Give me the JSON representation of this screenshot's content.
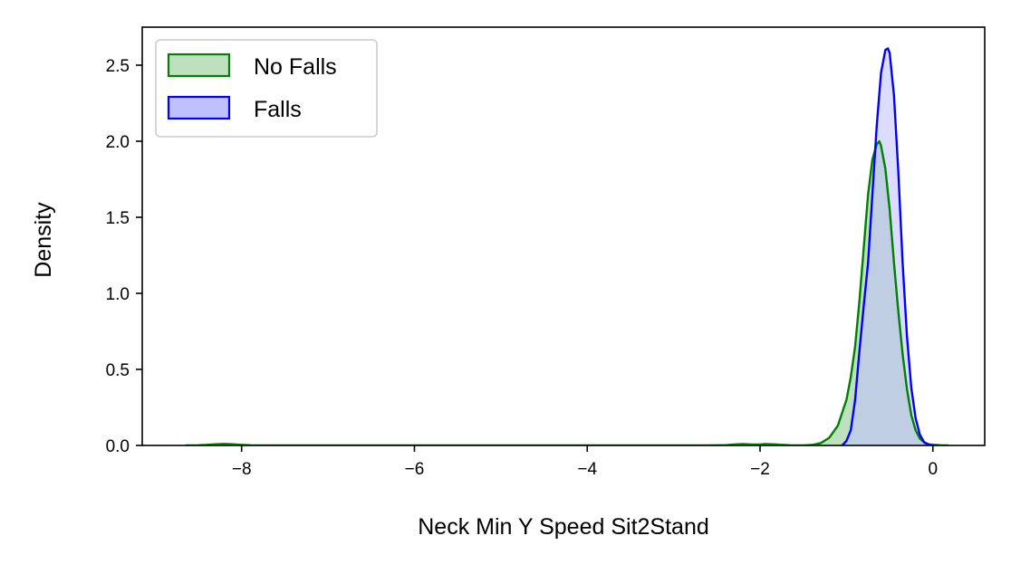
{
  "chart_data": {
    "type": "area",
    "title": "",
    "xlabel": "Neck Min Y Speed Sit2Stand",
    "ylabel": "Density",
    "xlim": [
      -9.15,
      0.6
    ],
    "ylim": [
      0,
      2.75
    ],
    "xticks": [
      -8,
      -6,
      -4,
      -2,
      0
    ],
    "xtick_labels": [
      "−8",
      "−6",
      "−4",
      "−2",
      "0"
    ],
    "yticks": [
      0.0,
      0.5,
      1.0,
      1.5,
      2.0,
      2.5
    ],
    "ytick_labels": [
      "0.0",
      "0.5",
      "1.0",
      "1.5",
      "2.0",
      "2.5"
    ],
    "grid": false,
    "legend_position": "top-left",
    "series": [
      {
        "name": "No Falls",
        "color": "#008000",
        "fill": "#bfe0bf",
        "x": [
          -8.65,
          -8.5,
          -8.4,
          -8.3,
          -8.2,
          -8.1,
          -8.0,
          -7.9,
          -7.5,
          -6.5,
          -5.0,
          -3.5,
          -2.6,
          -2.4,
          -2.3,
          -2.2,
          -2.1,
          -2.0,
          -1.95,
          -1.85,
          -1.75,
          -1.65,
          -1.5,
          -1.4,
          -1.3,
          -1.2,
          -1.1,
          -1.0,
          -0.95,
          -0.9,
          -0.85,
          -0.8,
          -0.75,
          -0.7,
          -0.65,
          -0.62,
          -0.6,
          -0.55,
          -0.5,
          -0.45,
          -0.4,
          -0.35,
          -0.3,
          -0.25,
          -0.2,
          -0.15,
          -0.1,
          -0.05,
          0.0,
          0.1,
          0.18
        ],
        "y": [
          0.0,
          0.001,
          0.004,
          0.008,
          0.01,
          0.008,
          0.004,
          0.001,
          0.0,
          0.0,
          0.0,
          0.0,
          0.0,
          0.002,
          0.006,
          0.009,
          0.006,
          0.006,
          0.009,
          0.008,
          0.004,
          0.001,
          0.0,
          0.003,
          0.015,
          0.05,
          0.13,
          0.3,
          0.45,
          0.65,
          0.95,
          1.3,
          1.65,
          1.88,
          1.98,
          2.0,
          1.97,
          1.82,
          1.55,
          1.2,
          0.88,
          0.6,
          0.37,
          0.2,
          0.1,
          0.045,
          0.02,
          0.008,
          0.004,
          0.001,
          0.0
        ]
      },
      {
        "name": "Falls",
        "color": "#0000ff",
        "fill": "#c0c0ff",
        "x": [
          -1.05,
          -1.0,
          -0.95,
          -0.9,
          -0.85,
          -0.8,
          -0.75,
          -0.7,
          -0.65,
          -0.6,
          -0.55,
          -0.52,
          -0.5,
          -0.45,
          -0.4,
          -0.35,
          -0.3,
          -0.25,
          -0.2,
          -0.15,
          -0.1,
          -0.05,
          0.0,
          0.05
        ],
        "y": [
          0.0,
          0.03,
          0.1,
          0.3,
          0.62,
          0.92,
          1.2,
          1.65,
          2.1,
          2.45,
          2.6,
          2.61,
          2.58,
          2.3,
          1.8,
          1.2,
          0.72,
          0.38,
          0.18,
          0.07,
          0.02,
          0.005,
          0.001,
          0.0
        ]
      }
    ]
  }
}
